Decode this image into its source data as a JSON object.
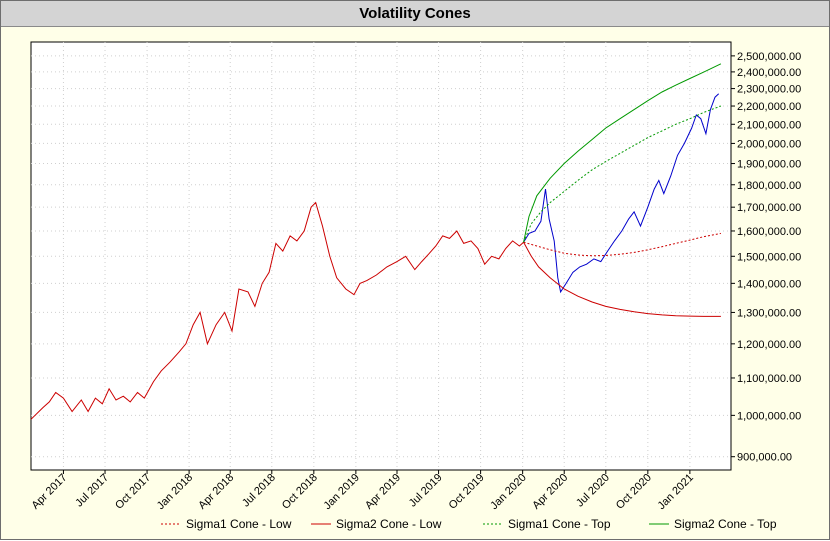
{
  "window": {
    "title": "Volatility Cones"
  },
  "chart_data": {
    "type": "line",
    "title": "Volatility Cones",
    "yscale": "log",
    "ylim": [
      870000,
      2590000
    ],
    "xlim": [
      "2017-01-20",
      "2021-04-01"
    ],
    "grid": true,
    "legend_position": "bottom",
    "y_ticks": [
      900000,
      1000000,
      1100000,
      1200000,
      1300000,
      1400000,
      1500000,
      1600000,
      1700000,
      1800000,
      1900000,
      2000000,
      2100000,
      2200000,
      2300000,
      2400000,
      2500000
    ],
    "y_tick_labels": [
      "900,000.00",
      "1,000,000.00",
      "1,100,000.00",
      "1,200,000.00",
      "1,300,000.00",
      "1,400,000.00",
      "1,500,000.00",
      "1,600,000.00",
      "1,700,000.00",
      "1,800,000.00",
      "1,900,000.00",
      "2,000,000.00",
      "2,100,000.00",
      "2,200,000.00",
      "2,300,000.00",
      "2,400,000.00",
      "2,500,000.00"
    ],
    "x_ticks": [
      "2017-04-01",
      "2017-07-01",
      "2017-10-01",
      "2018-01-01",
      "2018-04-01",
      "2018-07-01",
      "2018-10-01",
      "2019-01-01",
      "2019-04-01",
      "2019-07-01",
      "2019-10-01",
      "2020-01-01",
      "2020-04-01",
      "2020-07-01",
      "2020-10-01",
      "2021-01-01"
    ],
    "x_tick_labels": [
      "Apr 2017",
      "Jul 2017",
      "Oct 2017",
      "Jan 2018",
      "Apr 2018",
      "Jul 2018",
      "Oct 2018",
      "Jan 2019",
      "Apr 2019",
      "Jul 2019",
      "Oct 2019",
      "Jan 2020",
      "Apr 2020",
      "Jul 2020",
      "Oct 2020",
      "Jan 2021"
    ],
    "series": [
      {
        "color": "#cc0000",
        "style": "solid",
        "points": [
          [
            "2017-01-20",
            990000
          ],
          [
            "2017-02-15",
            1020000
          ],
          [
            "2017-03-01",
            1035000
          ],
          [
            "2017-03-15",
            1060000
          ],
          [
            "2017-04-01",
            1045000
          ],
          [
            "2017-04-20",
            1010000
          ],
          [
            "2017-05-10",
            1040000
          ],
          [
            "2017-05-25",
            1010000
          ],
          [
            "2017-06-10",
            1045000
          ],
          [
            "2017-06-25",
            1030000
          ],
          [
            "2017-07-10",
            1070000
          ],
          [
            "2017-07-25",
            1040000
          ],
          [
            "2017-08-10",
            1050000
          ],
          [
            "2017-08-25",
            1035000
          ],
          [
            "2017-09-10",
            1060000
          ],
          [
            "2017-09-25",
            1045000
          ],
          [
            "2017-10-15",
            1090000
          ],
          [
            "2017-11-01",
            1120000
          ],
          [
            "2017-11-20",
            1145000
          ],
          [
            "2017-12-10",
            1175000
          ],
          [
            "2017-12-25",
            1200000
          ],
          [
            "2018-01-10",
            1260000
          ],
          [
            "2018-01-25",
            1300000
          ],
          [
            "2018-02-10",
            1200000
          ],
          [
            "2018-03-01",
            1260000
          ],
          [
            "2018-03-20",
            1300000
          ],
          [
            "2018-04-05",
            1240000
          ],
          [
            "2018-04-20",
            1380000
          ],
          [
            "2018-05-10",
            1370000
          ],
          [
            "2018-05-25",
            1320000
          ],
          [
            "2018-06-10",
            1400000
          ],
          [
            "2018-06-25",
            1440000
          ],
          [
            "2018-07-10",
            1550000
          ],
          [
            "2018-07-25",
            1520000
          ],
          [
            "2018-08-10",
            1580000
          ],
          [
            "2018-08-25",
            1560000
          ],
          [
            "2018-09-10",
            1600000
          ],
          [
            "2018-09-25",
            1700000
          ],
          [
            "2018-10-05",
            1720000
          ],
          [
            "2018-10-20",
            1620000
          ],
          [
            "2018-11-05",
            1500000
          ],
          [
            "2018-11-20",
            1420000
          ],
          [
            "2018-12-10",
            1380000
          ],
          [
            "2018-12-28",
            1360000
          ],
          [
            "2019-01-10",
            1400000
          ],
          [
            "2019-01-25",
            1410000
          ],
          [
            "2019-02-15",
            1430000
          ],
          [
            "2019-03-10",
            1460000
          ],
          [
            "2019-04-01",
            1480000
          ],
          [
            "2019-04-20",
            1500000
          ],
          [
            "2019-05-10",
            1450000
          ],
          [
            "2019-05-25",
            1480000
          ],
          [
            "2019-06-10",
            1510000
          ],
          [
            "2019-06-25",
            1540000
          ],
          [
            "2019-07-10",
            1580000
          ],
          [
            "2019-07-25",
            1570000
          ],
          [
            "2019-08-10",
            1600000
          ],
          [
            "2019-08-25",
            1550000
          ],
          [
            "2019-09-10",
            1560000
          ],
          [
            "2019-09-25",
            1530000
          ],
          [
            "2019-10-10",
            1470000
          ],
          [
            "2019-10-25",
            1500000
          ],
          [
            "2019-11-10",
            1490000
          ],
          [
            "2019-11-25",
            1530000
          ],
          [
            "2019-12-10",
            1560000
          ],
          [
            "2019-12-25",
            1540000
          ],
          [
            "2020-01-03",
            1555000
          ]
        ]
      },
      {
        "color": "#0000cc",
        "style": "solid",
        "points": [
          [
            "2020-01-03",
            1555000
          ],
          [
            "2020-01-15",
            1590000
          ],
          [
            "2020-01-28",
            1600000
          ],
          [
            "2020-02-10",
            1640000
          ],
          [
            "2020-02-20",
            1780000
          ],
          [
            "2020-02-28",
            1650000
          ],
          [
            "2020-03-10",
            1560000
          ],
          [
            "2020-03-18",
            1420000
          ],
          [
            "2020-03-24",
            1370000
          ],
          [
            "2020-04-05",
            1400000
          ],
          [
            "2020-04-20",
            1440000
          ],
          [
            "2020-05-05",
            1460000
          ],
          [
            "2020-05-20",
            1470000
          ],
          [
            "2020-06-05",
            1490000
          ],
          [
            "2020-06-20",
            1480000
          ],
          [
            "2020-07-05",
            1520000
          ],
          [
            "2020-07-20",
            1560000
          ],
          [
            "2020-08-05",
            1600000
          ],
          [
            "2020-08-20",
            1650000
          ],
          [
            "2020-09-01",
            1680000
          ],
          [
            "2020-09-15",
            1620000
          ],
          [
            "2020-10-01",
            1700000
          ],
          [
            "2020-10-15",
            1780000
          ],
          [
            "2020-10-25",
            1820000
          ],
          [
            "2020-11-05",
            1760000
          ],
          [
            "2020-11-20",
            1840000
          ],
          [
            "2020-12-05",
            1940000
          ],
          [
            "2020-12-20",
            2000000
          ],
          [
            "2021-01-05",
            2080000
          ],
          [
            "2021-01-15",
            2150000
          ],
          [
            "2021-01-25",
            2130000
          ],
          [
            "2021-02-05",
            2050000
          ],
          [
            "2021-02-15",
            2180000
          ],
          [
            "2021-02-25",
            2250000
          ],
          [
            "2021-03-05",
            2270000
          ]
        ]
      },
      {
        "name": "Sigma1 Cone - Low",
        "color": "#cc0000",
        "style": "dotted",
        "points": [
          [
            "2020-01-03",
            1555000
          ],
          [
            "2020-02-01",
            1540000
          ],
          [
            "2020-03-01",
            1525000
          ],
          [
            "2020-04-01",
            1512000
          ],
          [
            "2020-05-01",
            1505000
          ],
          [
            "2020-06-01",
            1502000
          ],
          [
            "2020-07-01",
            1503000
          ],
          [
            "2020-08-01",
            1508000
          ],
          [
            "2020-09-01",
            1515000
          ],
          [
            "2020-10-01",
            1525000
          ],
          [
            "2020-11-01",
            1537000
          ],
          [
            "2020-12-01",
            1550000
          ],
          [
            "2021-01-01",
            1563000
          ],
          [
            "2021-02-01",
            1577000
          ],
          [
            "2021-03-10",
            1590000
          ]
        ]
      },
      {
        "name": "Sigma2 Cone - Low",
        "color": "#cc0000",
        "style": "solid",
        "points": [
          [
            "2020-01-03",
            1555000
          ],
          [
            "2020-01-20",
            1500000
          ],
          [
            "2020-02-05",
            1460000
          ],
          [
            "2020-03-01",
            1420000
          ],
          [
            "2020-04-01",
            1380000
          ],
          [
            "2020-05-01",
            1355000
          ],
          [
            "2020-06-01",
            1335000
          ],
          [
            "2020-07-01",
            1320000
          ],
          [
            "2020-08-01",
            1310000
          ],
          [
            "2020-09-01",
            1302000
          ],
          [
            "2020-10-01",
            1296000
          ],
          [
            "2020-11-01",
            1292000
          ],
          [
            "2020-12-01",
            1289000
          ],
          [
            "2021-01-01",
            1288000
          ],
          [
            "2021-02-01",
            1287000
          ],
          [
            "2021-03-10",
            1287000
          ]
        ]
      },
      {
        "name": "Sigma1 Cone - Top",
        "color": "#009900",
        "style": "dotted",
        "points": [
          [
            "2020-01-03",
            1555000
          ],
          [
            "2020-01-20",
            1630000
          ],
          [
            "2020-02-10",
            1680000
          ],
          [
            "2020-03-01",
            1720000
          ],
          [
            "2020-04-01",
            1770000
          ],
          [
            "2020-05-01",
            1820000
          ],
          [
            "2020-06-01",
            1870000
          ],
          [
            "2020-07-01",
            1910000
          ],
          [
            "2020-08-01",
            1950000
          ],
          [
            "2020-09-01",
            1990000
          ],
          [
            "2020-10-01",
            2030000
          ],
          [
            "2020-11-01",
            2065000
          ],
          [
            "2020-12-01",
            2100000
          ],
          [
            "2021-01-01",
            2130000
          ],
          [
            "2021-02-01",
            2165000
          ],
          [
            "2021-03-10",
            2200000
          ]
        ]
      },
      {
        "name": "Sigma2 Cone - Top",
        "color": "#009900",
        "style": "solid",
        "points": [
          [
            "2020-01-03",
            1555000
          ],
          [
            "2020-01-15",
            1660000
          ],
          [
            "2020-02-01",
            1750000
          ],
          [
            "2020-03-01",
            1830000
          ],
          [
            "2020-04-01",
            1900000
          ],
          [
            "2020-05-01",
            1960000
          ],
          [
            "2020-06-01",
            2020000
          ],
          [
            "2020-07-01",
            2080000
          ],
          [
            "2020-08-01",
            2130000
          ],
          [
            "2020-09-01",
            2180000
          ],
          [
            "2020-10-01",
            2230000
          ],
          [
            "2020-11-01",
            2280000
          ],
          [
            "2020-12-01",
            2320000
          ],
          [
            "2021-01-01",
            2360000
          ],
          [
            "2021-02-01",
            2400000
          ],
          [
            "2021-03-10",
            2450000
          ]
        ]
      }
    ]
  }
}
